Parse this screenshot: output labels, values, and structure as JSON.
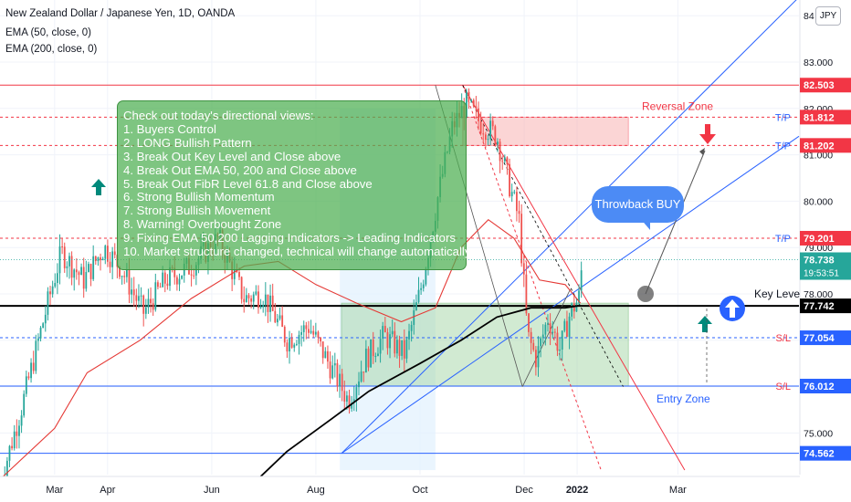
{
  "header": {
    "symbol": "New Zealand Dollar / Japanese Yen, 1D, OANDA",
    "ema50": "EMA (50, close, 0)",
    "ema200": "EMA (200, close, 0)",
    "currency_button": "JPY"
  },
  "colors": {
    "up_candle": "#26a69a",
    "down_candle": "#ef5350",
    "ema50": "#e53935",
    "ema200": "#000000",
    "key_level": "#000000",
    "support_line": "#2962ff",
    "resistance_line": "#f23645",
    "reversal_zone": "#f8b4b4",
    "entry_zone": "#a5d6a7",
    "annotation_box": "#4caf50",
    "bubble": "#4c8bf5"
  },
  "annotation_box": {
    "lines": [
      "Check out today's directional views:",
      "1. Buyers Control",
      "2. LONG Bullish Pattern",
      "3. Break Out Key Level and Close above",
      "4. Break Out EMA 50, 200 and Close above",
      "5. Break Out FibR Level 61.8 and Close above",
      "6. Strong Bullish Momentum",
      "7. Strong Bullish Movement",
      "8. Warning! Overbought Zone",
      "9. Fixing EMA 50,200 Lagging Indicators -> Leading Indicators",
      "10. Market structure changed, technical will change automatically"
    ]
  },
  "bubble_label": "Throwback BUY",
  "chart_data": {
    "type": "candlestick",
    "symbol": "NZDJPY",
    "timeframe": "1D",
    "x_tick_labels": [
      "Mar",
      "Apr",
      "Jun",
      "Aug",
      "Oct",
      "Dec",
      "2022",
      "Mar"
    ],
    "x_tick_dates": [
      "2021-03-01",
      "2021-04-01",
      "2021-06-01",
      "2021-08-01",
      "2021-10-01",
      "2021-12-01",
      "2022-01-01",
      "2022-03-01"
    ],
    "y_tick_labels": [
      "84",
      "83.000",
      "82.000",
      "81.000",
      "80.000",
      "79.000",
      "78.000",
      "77.000",
      "76.000",
      "75.000"
    ],
    "y_tick_values": [
      84,
      83,
      82,
      81,
      80,
      79,
      78,
      77,
      76,
      75
    ],
    "ylim": [
      74.15,
      84.2
    ],
    "xlim": [
      "2021-01-28",
      "2022-03-31"
    ],
    "current_price": "78.738",
    "countdown": "19:53:51",
    "price_labels": [
      {
        "value": 82.503,
        "text": "82.503",
        "kind": "resistance"
      },
      {
        "value": 81.812,
        "text": "81.812",
        "kind": "take_profit",
        "tag": "T/P"
      },
      {
        "value": 81.202,
        "text": "81.202",
        "kind": "take_profit",
        "tag": "T/P"
      },
      {
        "value": 79.201,
        "text": "79.201",
        "kind": "take_profit",
        "tag": "T/P"
      },
      {
        "value": 77.742,
        "text": "77.742",
        "kind": "key_level"
      },
      {
        "value": 77.054,
        "text": "77.054",
        "kind": "stop_loss",
        "tag": "S/L"
      },
      {
        "value": 76.012,
        "text": "76.012",
        "kind": "stop_loss",
        "tag": "S/L"
      },
      {
        "value": 74.562,
        "text": "74.562",
        "kind": "support"
      }
    ],
    "zones": [
      {
        "label": "Reversal Zone",
        "y_range": [
          81.202,
          81.812
        ],
        "x_range": [
          "2021-10-26",
          "2022-01-31"
        ]
      },
      {
        "label": "Entry Zone",
        "y_range": [
          76.012,
          77.8
        ],
        "x_range": [
          "2021-08-16",
          "2022-01-31"
        ]
      }
    ],
    "annotations": [
      {
        "text": "Key Level",
        "y": 77.742
      },
      {
        "text": "Reversal Zone",
        "y": 81.812
      },
      {
        "text": "Entry Zone",
        "y": 76.012
      }
    ],
    "series": [
      {
        "name": "EMA (50, close, 0)",
        "color": "#e53935",
        "points": [
          [
            "2021-01-28",
            74.0
          ],
          [
            "2021-03-01",
            75.1
          ],
          [
            "2021-03-20",
            76.3
          ],
          [
            "2021-04-20",
            77.0
          ],
          [
            "2021-05-20",
            77.9
          ],
          [
            "2021-06-20",
            78.6
          ],
          [
            "2021-07-10",
            78.7
          ],
          [
            "2021-08-01",
            78.2
          ],
          [
            "2021-08-25",
            77.8
          ],
          [
            "2021-09-20",
            77.4
          ],
          [
            "2021-10-10",
            77.7
          ],
          [
            "2021-10-25",
            79.0
          ],
          [
            "2021-11-10",
            79.6
          ],
          [
            "2021-11-25",
            79.2
          ],
          [
            "2021-12-10",
            78.3
          ],
          [
            "2021-12-25",
            78.2
          ],
          [
            "2022-01-03",
            77.8
          ]
        ]
      },
      {
        "name": "EMA (200, close, 0)",
        "color": "#000000",
        "points": [
          [
            "2021-06-25",
            73.9
          ],
          [
            "2021-07-15",
            74.6
          ],
          [
            "2021-08-10",
            75.3
          ],
          [
            "2021-09-01",
            75.9
          ],
          [
            "2021-10-01",
            76.5
          ],
          [
            "2021-10-25",
            77.0
          ],
          [
            "2021-11-15",
            77.5
          ],
          [
            "2021-12-05",
            77.7
          ],
          [
            "2021-12-25",
            77.7
          ],
          [
            "2022-01-03",
            77.75
          ]
        ]
      }
    ],
    "candles_close_path": [
      [
        "2021-01-28",
        73.9
      ],
      [
        "2021-02-10",
        75.6
      ],
      [
        "2021-02-25",
        77.8
      ],
      [
        "2021-03-05",
        78.9
      ],
      [
        "2021-03-18",
        78.3
      ],
      [
        "2021-03-30",
        79.0
      ],
      [
        "2021-04-08",
        78.6
      ],
      [
        "2021-04-22",
        77.6
      ],
      [
        "2021-05-05",
        78.3
      ],
      [
        "2021-05-20",
        78.6
      ],
      [
        "2021-06-05",
        79.2
      ],
      [
        "2021-06-20",
        77.9
      ],
      [
        "2021-07-01",
        78.0
      ],
      [
        "2021-07-15",
        77.0
      ],
      [
        "2021-07-28",
        77.3
      ],
      [
        "2021-08-10",
        76.4
      ],
      [
        "2021-08-20",
        75.7
      ],
      [
        "2021-08-30",
        76.6
      ],
      [
        "2021-09-10",
        77.1
      ],
      [
        "2021-09-22",
        76.7
      ],
      [
        "2021-10-02",
        78.2
      ],
      [
        "2021-10-12",
        80.2
      ],
      [
        "2021-10-20",
        81.6
      ],
      [
        "2021-10-28",
        82.1
      ],
      [
        "2021-11-05",
        81.7
      ],
      [
        "2021-11-15",
        81.4
      ],
      [
        "2021-11-22",
        80.4
      ],
      [
        "2021-11-28",
        79.6
      ],
      [
        "2021-12-03",
        77.1
      ],
      [
        "2021-12-08",
        76.6
      ],
      [
        "2021-12-15",
        77.5
      ],
      [
        "2021-12-22",
        76.8
      ],
      [
        "2021-12-28",
        77.6
      ],
      [
        "2022-01-02",
        77.9
      ],
      [
        "2022-01-04",
        78.7
      ]
    ]
  }
}
